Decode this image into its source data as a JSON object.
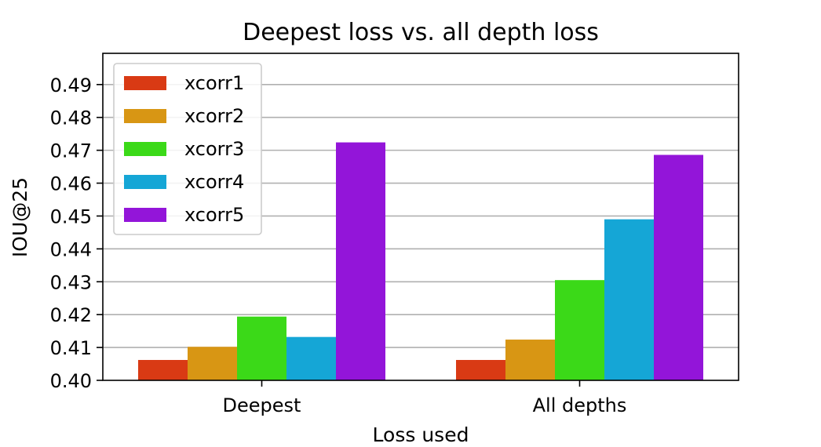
{
  "chart_data": {
    "type": "bar",
    "title": "Deepest loss vs. all depth loss",
    "xlabel": "Loss used",
    "ylabel": "IOU@25",
    "categories": [
      "Deepest",
      "All depths"
    ],
    "series": [
      {
        "name": "xcorr1",
        "color": "#d93a14",
        "values": [
          0.4062,
          0.4062
        ]
      },
      {
        "name": "xcorr2",
        "color": "#d89614",
        "values": [
          0.4102,
          0.4124
        ]
      },
      {
        "name": "xcorr3",
        "color": "#3bd918",
        "values": [
          0.4194,
          0.4305
        ]
      },
      {
        "name": "xcorr4",
        "color": "#15a6d6",
        "values": [
          0.4132,
          0.449
        ]
      },
      {
        "name": "xcorr5",
        "color": "#9315d9",
        "values": [
          0.4724,
          0.4686
        ]
      }
    ],
    "ylim": [
      0.4,
      0.4995
    ],
    "yticks": [
      "0.40",
      "0.41",
      "0.42",
      "0.43",
      "0.44",
      "0.45",
      "0.46",
      "0.47",
      "0.48",
      "0.49"
    ],
    "grid": "horizontal",
    "legend_position": "top-left"
  }
}
